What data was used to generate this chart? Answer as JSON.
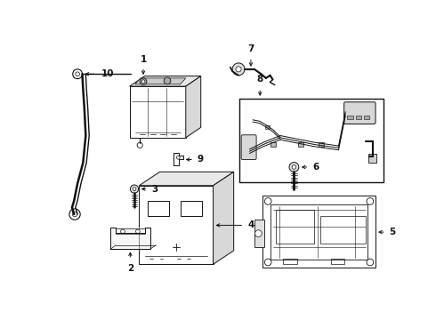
{
  "bg_color": "#ffffff",
  "line_color": "#111111",
  "fig_width": 4.9,
  "fig_height": 3.6,
  "dpi": 100,
  "label_fontsize": 7.5,
  "lw": 0.7
}
